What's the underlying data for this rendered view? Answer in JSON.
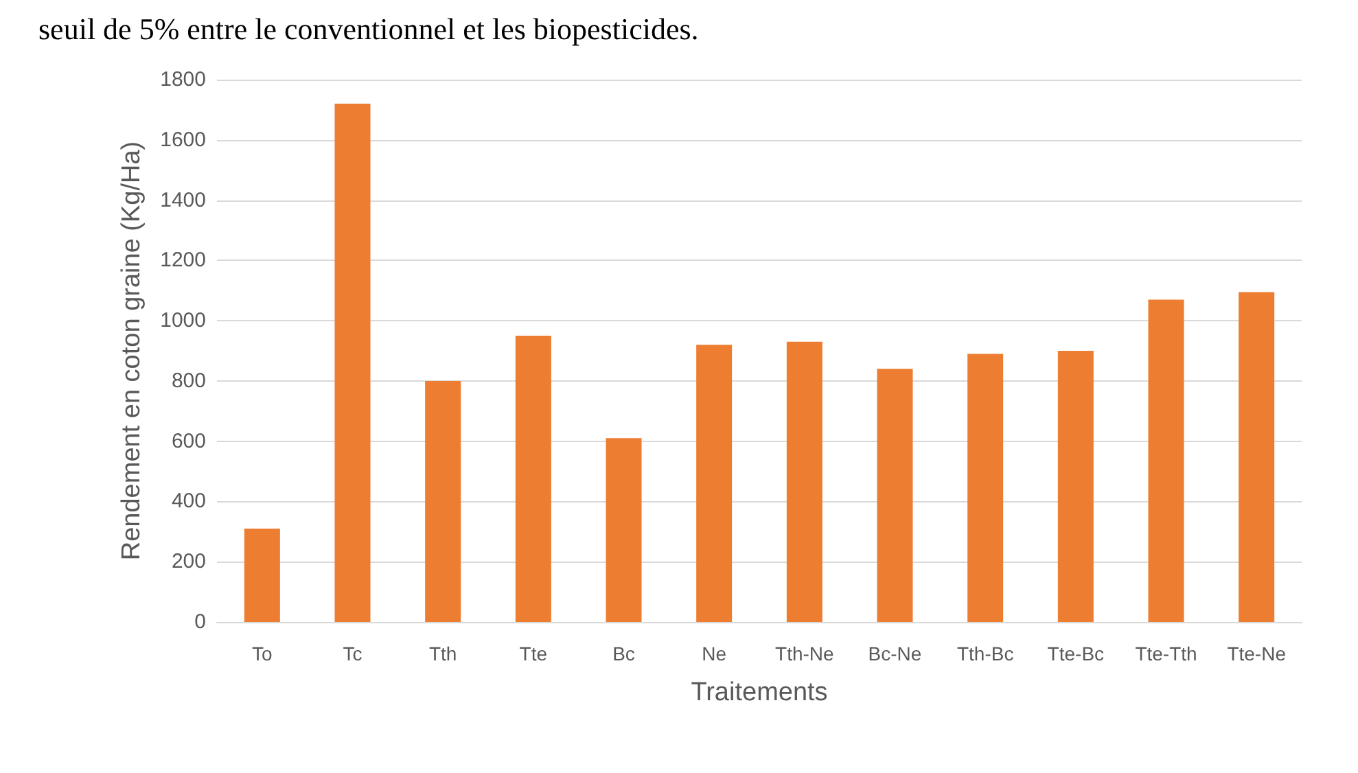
{
  "chart_data": {
    "type": "bar",
    "categories": [
      "To",
      "Tc",
      "Tth",
      "Tte",
      "Bc",
      "Ne",
      "Tth-Ne",
      "Bc-Ne",
      "Tth-Bc",
      "Tte-Bc",
      "Tte-Tth",
      "Tte-Ne"
    ],
    "values": [
      310,
      1720,
      800,
      950,
      610,
      920,
      930,
      840,
      890,
      900,
      1070,
      1095
    ],
    "color": "#ed7d31",
    "xlabel": "Traitements",
    "ylabel": "Rendement en coton graine (Kg/Ha)",
    "ylim": [
      0,
      1800
    ],
    "yticks": [
      0,
      200,
      400,
      600,
      800,
      1000,
      1200,
      1400,
      1600,
      1800
    ],
    "grid": "y",
    "annotations": [
      "seuil de 5% entre le conventionnel et les biopesticides."
    ]
  }
}
